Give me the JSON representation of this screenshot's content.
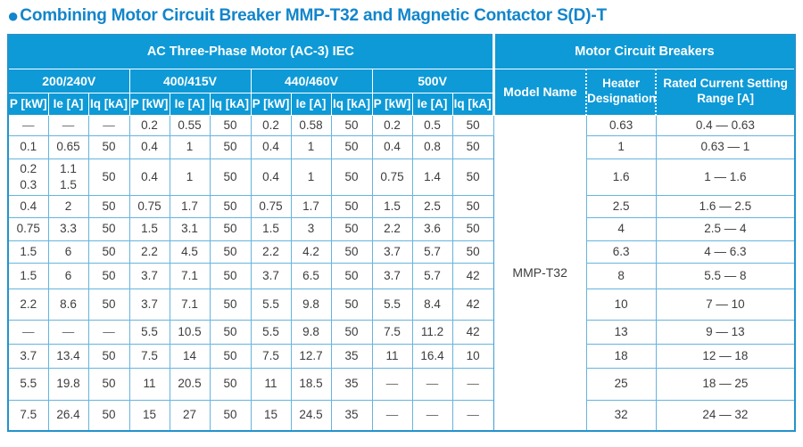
{
  "title": {
    "bullet": "●",
    "text": "Combining Motor Circuit Breaker MMP-T32 and Magnetic Contactor S(D)-T"
  },
  "colors": {
    "header_blue": "#0e9ad7",
    "title_blue": "#1285cb",
    "frame_blue": "#2293cc",
    "grid_blue": "#66b4de"
  },
  "table": {
    "section_headers": {
      "left": "AC Three-Phase Motor (AC-3) IEC",
      "right": "Motor Circuit Breakers"
    },
    "voltage_groups": [
      "200/240V",
      "400/415V",
      "440/460V",
      "500V"
    ],
    "sub_headers": [
      "P [kW]",
      "Ie [A]",
      "Iq [kA]"
    ],
    "breaker_headers": {
      "model": "Model Name",
      "heater": "Heater Designation",
      "rated": "Rated Current Setting Range [A]"
    },
    "model_name": "MMP-T32",
    "rows": [
      {
        "cells": [
          "—",
          "—",
          "—",
          "0.2",
          "0.55",
          "50",
          "0.2",
          "0.58",
          "50",
          "0.2",
          "0.5",
          "50"
        ],
        "heater": "0.63",
        "range": "0.4 — 0.63"
      },
      {
        "cells": [
          "0.1",
          "0.65",
          "50",
          "0.4",
          "1",
          "50",
          "0.4",
          "1",
          "50",
          "0.4",
          "0.8",
          "50"
        ],
        "heater": "1",
        "range": "0.63 — 1"
      },
      {
        "cells": [
          "0.2\n0.3",
          "1.1\n1.5",
          "50",
          "0.4",
          "1",
          "50",
          "0.4",
          "1",
          "50",
          "0.75",
          "1.4",
          "50"
        ],
        "heater": "1.6",
        "range": "1 — 1.6"
      },
      {
        "cells": [
          "0.4",
          "2",
          "50",
          "0.75",
          "1.7",
          "50",
          "0.75",
          "1.7",
          "50",
          "1.5",
          "2.5",
          "50"
        ],
        "heater": "2.5",
        "range": "1.6 — 2.5"
      },
      {
        "cells": [
          "0.75",
          "3.3",
          "50",
          "1.5",
          "3.1",
          "50",
          "1.5",
          "3",
          "50",
          "2.2",
          "3.6",
          "50"
        ],
        "heater": "4",
        "range": "2.5 — 4"
      },
      {
        "cells": [
          "1.5",
          "6",
          "50",
          "2.2",
          "4.5",
          "50",
          "2.2",
          "4.2",
          "50",
          "3.7",
          "5.7",
          "50"
        ],
        "heater": "6.3",
        "range": "4 — 6.3"
      },
      {
        "cells": [
          "1.5",
          "6",
          "50",
          "3.7",
          "7.1",
          "50",
          "3.7",
          "6.5",
          "50",
          "3.7",
          "5.7",
          "42"
        ],
        "heater": "8",
        "range": "5.5 — 8"
      },
      {
        "cells": [
          "2.2",
          "8.6",
          "50",
          "3.7",
          "7.1",
          "50",
          "5.5",
          "9.8",
          "50",
          "5.5",
          "8.4",
          "42"
        ],
        "heater": "10",
        "range": "7 — 10"
      },
      {
        "cells": [
          "—",
          "—",
          "—",
          "5.5",
          "10.5",
          "50",
          "5.5",
          "9.8",
          "50",
          "7.5",
          "11.2",
          "42"
        ],
        "heater": "13",
        "range": "9 — 13"
      },
      {
        "cells": [
          "3.7",
          "13.4",
          "50",
          "7.5",
          "14",
          "50",
          "7.5",
          "12.7",
          "35",
          "11",
          "16.4",
          "10"
        ],
        "heater": "18",
        "range": "12 — 18"
      },
      {
        "cells": [
          "5.5",
          "19.8",
          "50",
          "11",
          "20.5",
          "50",
          "11",
          "18.5",
          "35",
          "—",
          "—",
          "—"
        ],
        "heater": "25",
        "range": "18 — 25"
      },
      {
        "cells": [
          "7.5",
          "26.4",
          "50",
          "15",
          "27",
          "50",
          "15",
          "24.5",
          "35",
          "—",
          "—",
          "—"
        ],
        "heater": "32",
        "range": "24 — 32"
      }
    ]
  }
}
